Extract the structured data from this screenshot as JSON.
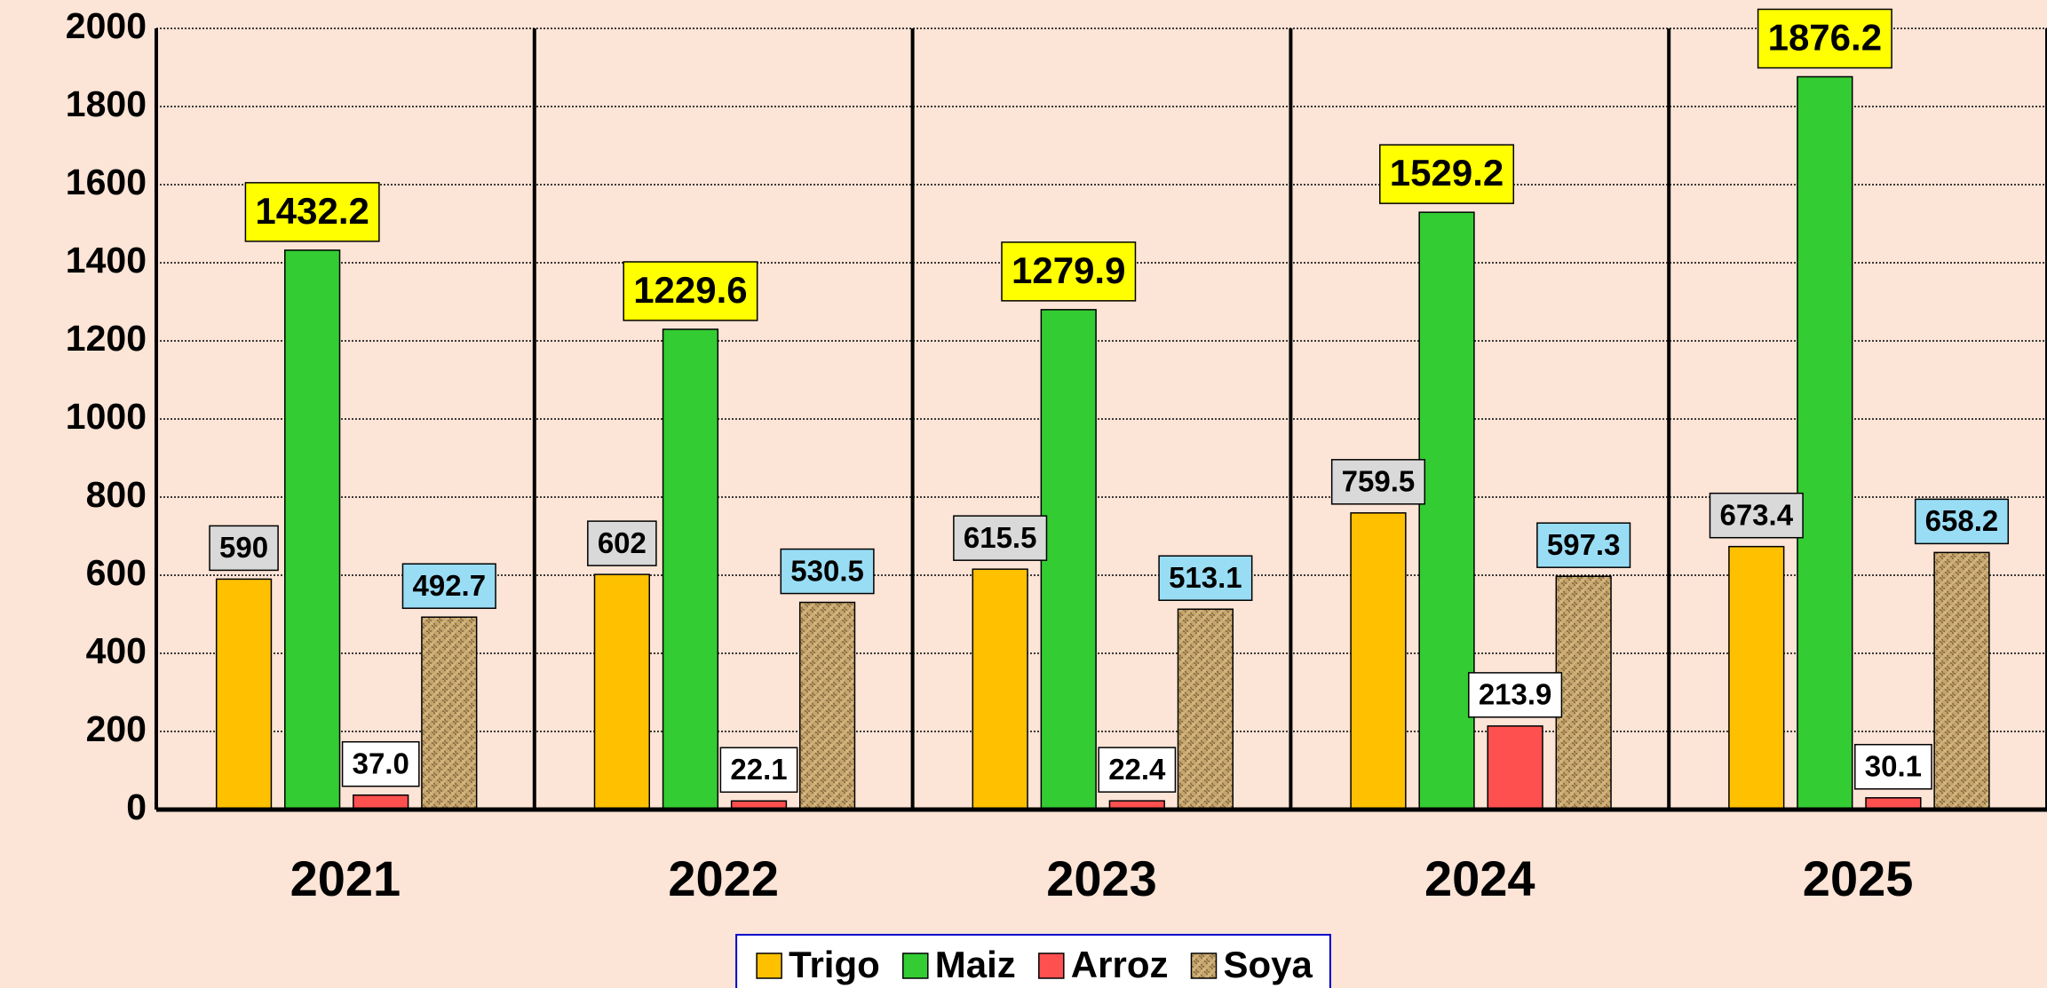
{
  "chart_data": {
    "type": "bar",
    "categories": [
      "2021",
      "2022",
      "2023",
      "2024",
      "2025"
    ],
    "series": [
      {
        "name": "Trigo",
        "color": "#ffc000",
        "label_color": "#d9d9d9",
        "values": [
          590,
          602,
          615.5,
          759.5,
          673.4
        ]
      },
      {
        "name": "Maiz",
        "color": "#33cc33",
        "label_color": "#ffff00",
        "values": [
          1432.2,
          1229.6,
          1279.9,
          1529.2,
          1876.2
        ]
      },
      {
        "name": "Arroz",
        "color": "#ff5050",
        "label_color": "#ffffff",
        "values": [
          37,
          22.1,
          22.4,
          213.9,
          30.1
        ],
        "value_labels": [
          "37.0",
          "22.1",
          "22.4",
          "213.9",
          "30.1"
        ]
      },
      {
        "name": "Soya",
        "color": "#c4a46c",
        "pattern": "burlap",
        "label_color": "#99ddf5",
        "label_text_color": "#5b2c6f",
        "values": [
          492.7,
          530.5,
          513.1,
          597.3,
          658.2
        ]
      }
    ],
    "ylim": [
      0,
      2000
    ],
    "yticks": [
      0,
      200,
      400,
      600,
      800,
      1000,
      1200,
      1400,
      1600,
      1800,
      2000
    ],
    "grid": true,
    "legend": "bottom"
  }
}
